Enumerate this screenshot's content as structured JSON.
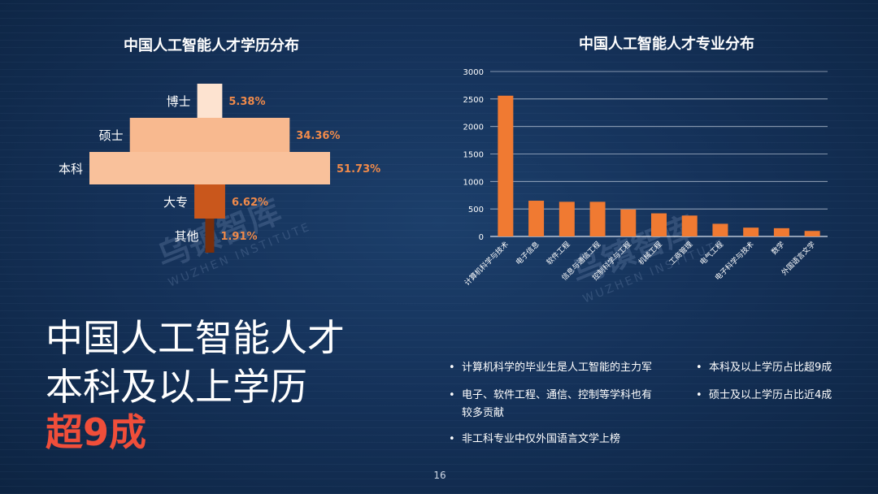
{
  "headline": {
    "line1": "中国人工智能人才",
    "line2": "本科及以上学历",
    "line3": "超9成"
  },
  "bullets": [
    "计算机科学的毕业生是人工智能的主力军",
    "电子、软件工程、通信、控制等学科也有",
    "较多贡献",
    "非工科专业中仅外国语言文学上榜",
    "本科及以上学历占比超9成",
    "硕士及以上学历占比近4成"
  ],
  "page_number": "16",
  "watermark": {
    "cn": "乌镇智库",
    "en": "WUZHEN INSTITUTE"
  },
  "colors": {
    "accent": "#f04e3a",
    "bar": "#f07a32",
    "funnel_light": "#fde3d0",
    "funnel_mid": "#f8b98f",
    "funnel_dark": "#cf5a1c"
  },
  "chart_data": [
    {
      "type": "bar",
      "subtype": "funnel",
      "title": "中国人工智能人才学历分布",
      "categories": [
        "博士",
        "硕士",
        "本科",
        "大专",
        "其他"
      ],
      "values": [
        5.38,
        34.36,
        51.73,
        6.62,
        1.91
      ],
      "value_labels": [
        "5.38%",
        "34.36%",
        "51.73%",
        "6.62%",
        "1.91%"
      ]
    },
    {
      "type": "bar",
      "title": "中国人工智能人才专业分布",
      "categories": [
        "计算机科学与技术",
        "电子信息",
        "软件工程",
        "信息与通信工程",
        "控制科学与工程",
        "机械工程",
        "工商管理",
        "电气工程",
        "电子科学与技术",
        "数学",
        "外国语言文学"
      ],
      "values": [
        2560,
        650,
        630,
        630,
        490,
        420,
        380,
        230,
        160,
        150,
        100
      ],
      "ylim": [
        0,
        3000
      ],
      "yticks": [
        "0",
        "500",
        "1000",
        "1500",
        "2000",
        "2500",
        "3000"
      ],
      "grid": true
    }
  ]
}
